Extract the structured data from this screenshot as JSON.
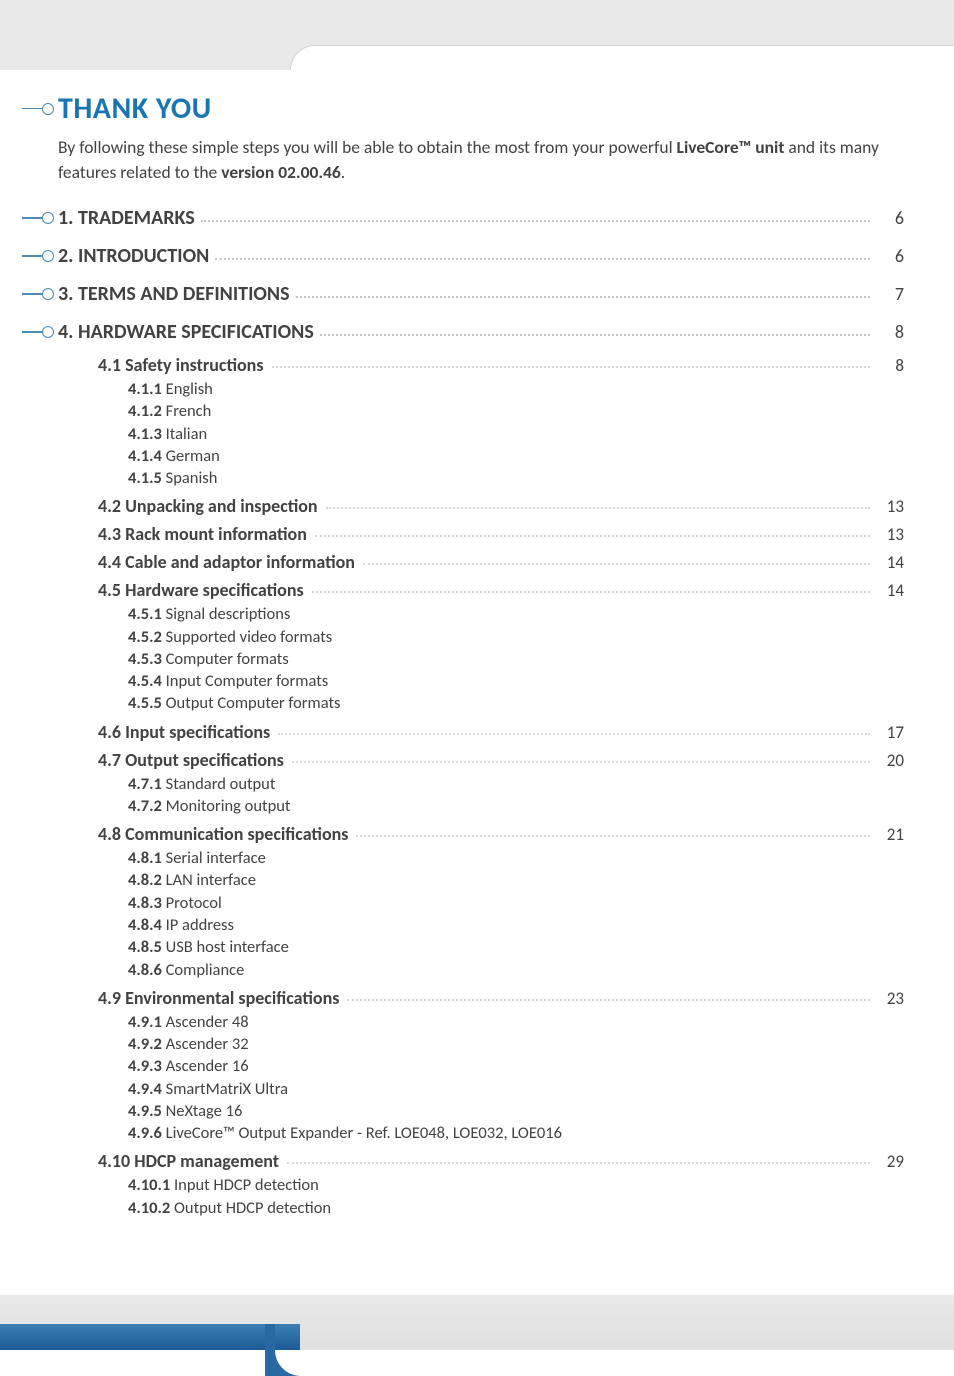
{
  "thank_you": {
    "title": "THANK YOU",
    "intro_prefix": "By following these simple steps you will be able to obtain the most from your powerful ",
    "intro_bold1": "LiveCore™ unit",
    "intro_mid": " and its many features related to the ",
    "intro_bold2": "version 02.00.46",
    "intro_suffix": "."
  },
  "toc": {
    "s1": {
      "title": "1. TRADEMARKS",
      "page": "6"
    },
    "s2": {
      "title": "2. INTRODUCTION",
      "page": "6"
    },
    "s3": {
      "title": "3. TERMS AND DEFINITIONS",
      "page": "7"
    },
    "s4": {
      "title": "4. HARDWARE SPECIFICATIONS",
      "page": "8"
    },
    "s4_1": {
      "title": "4.1 Safety instructions",
      "page": "8",
      "i1n": "4.1.1",
      "i1": " English",
      "i2n": "4.1.2",
      "i2": " French",
      "i3n": "4.1.3",
      "i3": " Italian",
      "i4n": "4.1.4",
      "i4": " German",
      "i5n": "4.1.5",
      "i5": " Spanish"
    },
    "s4_2": {
      "title": "4.2 Unpacking and inspection",
      "page": "13"
    },
    "s4_3": {
      "title": "4.3 Rack mount information",
      "page": "13"
    },
    "s4_4": {
      "title": "4.4 Cable and adaptor information",
      "page": "14"
    },
    "s4_5": {
      "title": "4.5 Hardware specifications",
      "page": "14",
      "i1n": "4.5.1",
      "i1": " Signal descriptions",
      "i2n": "4.5.2",
      "i2": " Supported video formats",
      "i3n": "4.5.3",
      "i3": " Computer formats",
      "i4n": "4.5.4",
      "i4": " Input Computer formats",
      "i5n": "4.5.5",
      "i5": " Output Computer formats"
    },
    "s4_6": {
      "title": "4.6 Input specifications",
      "page": "17"
    },
    "s4_7": {
      "title": "4.7 Output specifications",
      "page": "20",
      "i1n": "4.7.1",
      "i1": " Standard output",
      "i2n": "4.7.2",
      "i2": " Monitoring output"
    },
    "s4_8": {
      "title": "4.8 Communication specifications",
      "page": "21",
      "i1n": "4.8.1",
      "i1": " Serial interface",
      "i2n": "4.8.2",
      "i2": " LAN interface",
      "i3n": "4.8.3",
      "i3": " Protocol",
      "i4n": "4.8.4",
      "i4": " IP address",
      "i5n": "4.8.5",
      "i5": " USB host interface",
      "i6n": "4.8.6",
      "i6": " Compliance"
    },
    "s4_9": {
      "title": "4.9 Environmental specifications",
      "page": "23",
      "i1n": "4.9.1",
      "i1": " Ascender 48",
      "i2n": "4.9.2",
      "i2": " Ascender 32",
      "i3n": "4.9.3",
      "i3": " Ascender 16",
      "i4n": "4.9.4",
      "i4": " SmartMatriX Ultra",
      "i5n": "4.9.5",
      "i5": " NeXtage 16",
      "i6n": "4.9.6",
      "i6": " LiveCore™ Output Expander - Ref. LOE048, LOE032, LOE016"
    },
    "s4_10": {
      "title": "4.10 HDCP management",
      "page": "29",
      "i1n": "4.10.1",
      "i1": " Input HDCP detection",
      "i2n": "4.10.2",
      "i2": " Output HDCP detection"
    }
  }
}
